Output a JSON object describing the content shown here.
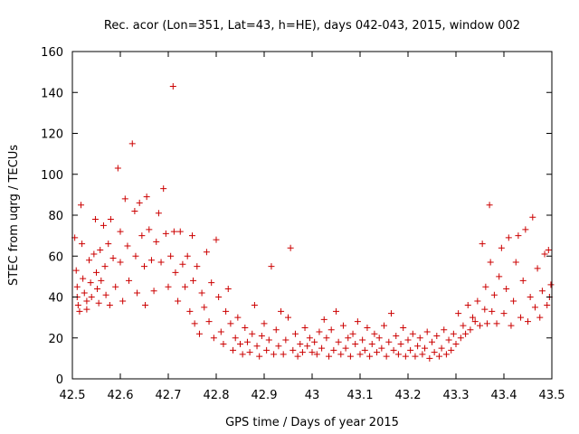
{
  "chart_data": {
    "type": "scatter",
    "title": "Rec. acor (Lon=351, Lat=43, h=HE), days 042-043, 2015, window 002",
    "xlabel": "GPS time / Days of year 2015",
    "ylabel": "STEC from uqrg / TECUs",
    "xlim": [
      42.5,
      43.5
    ],
    "ylim": [
      0,
      160
    ],
    "xticks": [
      42.5,
      42.6,
      42.7,
      42.8,
      42.9,
      43,
      43.1,
      43.2,
      43.3,
      43.4,
      43.5
    ],
    "xtick_labels": [
      "42.5",
      "42.6",
      "42.7",
      "42.8",
      "42.9",
      "43",
      "43.1",
      "43.2",
      "43.3",
      "43.4",
      "43.5"
    ],
    "yticks": [
      0,
      20,
      40,
      60,
      80,
      100,
      120,
      140,
      160
    ],
    "ytick_labels": [
      "0",
      "20",
      "40",
      "60",
      "80",
      "100",
      "120",
      "140",
      "160"
    ],
    "grid": false,
    "marker": "+",
    "color": "#cc0000",
    "series": [
      {
        "name": "STEC",
        "points": [
          [
            42.505,
            69
          ],
          [
            42.508,
            53
          ],
          [
            42.51,
            45
          ],
          [
            42.51,
            40
          ],
          [
            42.512,
            36
          ],
          [
            42.515,
            33
          ],
          [
            42.518,
            85
          ],
          [
            42.52,
            66
          ],
          [
            42.522,
            49
          ],
          [
            42.525,
            42
          ],
          [
            42.53,
            38
          ],
          [
            42.53,
            34
          ],
          [
            42.535,
            58
          ],
          [
            42.538,
            47
          ],
          [
            42.54,
            40
          ],
          [
            42.545,
            61
          ],
          [
            42.548,
            78
          ],
          [
            42.55,
            52
          ],
          [
            42.552,
            44
          ],
          [
            42.555,
            37
          ],
          [
            42.558,
            63
          ],
          [
            42.56,
            48
          ],
          [
            42.565,
            75
          ],
          [
            42.568,
            55
          ],
          [
            42.57,
            41
          ],
          [
            42.575,
            66
          ],
          [
            42.578,
            36
          ],
          [
            42.58,
            78
          ],
          [
            42.585,
            59
          ],
          [
            42.59,
            45
          ],
          [
            42.595,
            103
          ],
          [
            42.6,
            72
          ],
          [
            42.6,
            57
          ],
          [
            42.605,
            38
          ],
          [
            42.61,
            88
          ],
          [
            42.615,
            65
          ],
          [
            42.618,
            48
          ],
          [
            42.625,
            115
          ],
          [
            42.63,
            82
          ],
          [
            42.632,
            60
          ],
          [
            42.635,
            42
          ],
          [
            42.64,
            86
          ],
          [
            42.645,
            70
          ],
          [
            42.65,
            55
          ],
          [
            42.652,
            36
          ],
          [
            42.655,
            89
          ],
          [
            42.66,
            73
          ],
          [
            42.665,
            58
          ],
          [
            42.67,
            43
          ],
          [
            42.675,
            67
          ],
          [
            42.68,
            81
          ],
          [
            42.685,
            57
          ],
          [
            42.69,
            93
          ],
          [
            42.695,
            71
          ],
          [
            42.7,
            45
          ],
          [
            42.705,
            60
          ],
          [
            42.71,
            143
          ],
          [
            42.712,
            72
          ],
          [
            42.715,
            52
          ],
          [
            42.72,
            38
          ],
          [
            42.725,
            72
          ],
          [
            42.73,
            56
          ],
          [
            42.735,
            45
          ],
          [
            42.74,
            60
          ],
          [
            42.745,
            33
          ],
          [
            42.75,
            70
          ],
          [
            42.752,
            48
          ],
          [
            42.755,
            27
          ],
          [
            42.76,
            55
          ],
          [
            42.765,
            22
          ],
          [
            42.77,
            42
          ],
          [
            42.775,
            35
          ],
          [
            42.78,
            62
          ],
          [
            42.785,
            28
          ],
          [
            42.79,
            47
          ],
          [
            42.795,
            20
          ],
          [
            42.8,
            68
          ],
          [
            42.805,
            40
          ],
          [
            42.81,
            23
          ],
          [
            42.815,
            17
          ],
          [
            42.82,
            33
          ],
          [
            42.825,
            44
          ],
          [
            42.83,
            27
          ],
          [
            42.835,
            14
          ],
          [
            42.84,
            20
          ],
          [
            42.845,
            30
          ],
          [
            42.85,
            17
          ],
          [
            42.855,
            12
          ],
          [
            42.86,
            25
          ],
          [
            42.865,
            18
          ],
          [
            42.87,
            13
          ],
          [
            42.875,
            22
          ],
          [
            42.88,
            36
          ],
          [
            42.885,
            16
          ],
          [
            42.89,
            11
          ],
          [
            42.895,
            21
          ],
          [
            42.9,
            27
          ],
          [
            42.905,
            14
          ],
          [
            42.91,
            19
          ],
          [
            42.915,
            55
          ],
          [
            42.92,
            12
          ],
          [
            42.925,
            24
          ],
          [
            42.93,
            16
          ],
          [
            42.935,
            33
          ],
          [
            42.94,
            12
          ],
          [
            42.945,
            19
          ],
          [
            42.95,
            30
          ],
          [
            42.955,
            64
          ],
          [
            42.96,
            14
          ],
          [
            42.965,
            22
          ],
          [
            42.97,
            11
          ],
          [
            42.975,
            17
          ],
          [
            42.98,
            13
          ],
          [
            42.985,
            25
          ],
          [
            42.99,
            16
          ],
          [
            42.995,
            20
          ],
          [
            43.0,
            13
          ],
          [
            43.005,
            18
          ],
          [
            43.01,
            12
          ],
          [
            43.015,
            23
          ],
          [
            43.02,
            15
          ],
          [
            43.025,
            29
          ],
          [
            43.03,
            20
          ],
          [
            43.035,
            11
          ],
          [
            43.04,
            24
          ],
          [
            43.045,
            14
          ],
          [
            43.05,
            33
          ],
          [
            43.055,
            18
          ],
          [
            43.06,
            12
          ],
          [
            43.065,
            26
          ],
          [
            43.07,
            15
          ],
          [
            43.075,
            20
          ],
          [
            43.08,
            11
          ],
          [
            43.085,
            22
          ],
          [
            43.09,
            17
          ],
          [
            43.095,
            28
          ],
          [
            43.1,
            12
          ],
          [
            43.105,
            19
          ],
          [
            43.11,
            14
          ],
          [
            43.115,
            25
          ],
          [
            43.12,
            11
          ],
          [
            43.125,
            17
          ],
          [
            43.13,
            22
          ],
          [
            43.135,
            13
          ],
          [
            43.14,
            20
          ],
          [
            43.145,
            15
          ],
          [
            43.15,
            26
          ],
          [
            43.155,
            11
          ],
          [
            43.16,
            18
          ],
          [
            43.165,
            32
          ],
          [
            43.17,
            14
          ],
          [
            43.175,
            21
          ],
          [
            43.18,
            12
          ],
          [
            43.185,
            17
          ],
          [
            43.19,
            25
          ],
          [
            43.195,
            11
          ],
          [
            43.2,
            19
          ],
          [
            43.205,
            14
          ],
          [
            43.21,
            22
          ],
          [
            43.215,
            11
          ],
          [
            43.22,
            16
          ],
          [
            43.225,
            20
          ],
          [
            43.23,
            12
          ],
          [
            43.235,
            15
          ],
          [
            43.24,
            23
          ],
          [
            43.245,
            10
          ],
          [
            43.25,
            18
          ],
          [
            43.255,
            13
          ],
          [
            43.26,
            21
          ],
          [
            43.265,
            11
          ],
          [
            43.27,
            15
          ],
          [
            43.275,
            24
          ],
          [
            43.28,
            12
          ],
          [
            43.285,
            19
          ],
          [
            43.29,
            14
          ],
          [
            43.295,
            22
          ],
          [
            43.3,
            17
          ],
          [
            43.305,
            32
          ],
          [
            43.31,
            20
          ],
          [
            43.315,
            26
          ],
          [
            43.32,
            22
          ],
          [
            43.325,
            36
          ],
          [
            43.33,
            24
          ],
          [
            43.335,
            30
          ],
          [
            43.34,
            28
          ],
          [
            43.345,
            38
          ],
          [
            43.35,
            26
          ],
          [
            43.355,
            66
          ],
          [
            43.36,
            34
          ],
          [
            43.362,
            45
          ],
          [
            43.365,
            27
          ],
          [
            43.37,
            85
          ],
          [
            43.372,
            57
          ],
          [
            43.375,
            33
          ],
          [
            43.38,
            41
          ],
          [
            43.385,
            27
          ],
          [
            43.39,
            50
          ],
          [
            43.395,
            64
          ],
          [
            43.4,
            32
          ],
          [
            43.405,
            44
          ],
          [
            43.41,
            69
          ],
          [
            43.415,
            26
          ],
          [
            43.42,
            38
          ],
          [
            43.425,
            57
          ],
          [
            43.43,
            70
          ],
          [
            43.435,
            30
          ],
          [
            43.44,
            48
          ],
          [
            43.445,
            73
          ],
          [
            43.45,
            28
          ],
          [
            43.455,
            40
          ],
          [
            43.46,
            79
          ],
          [
            43.465,
            35
          ],
          [
            43.47,
            54
          ],
          [
            43.475,
            30
          ],
          [
            43.48,
            43
          ],
          [
            43.485,
            61
          ],
          [
            43.49,
            36
          ],
          [
            43.493,
            63
          ],
          [
            43.495,
            40
          ],
          [
            43.498,
            46
          ]
        ]
      }
    ]
  }
}
